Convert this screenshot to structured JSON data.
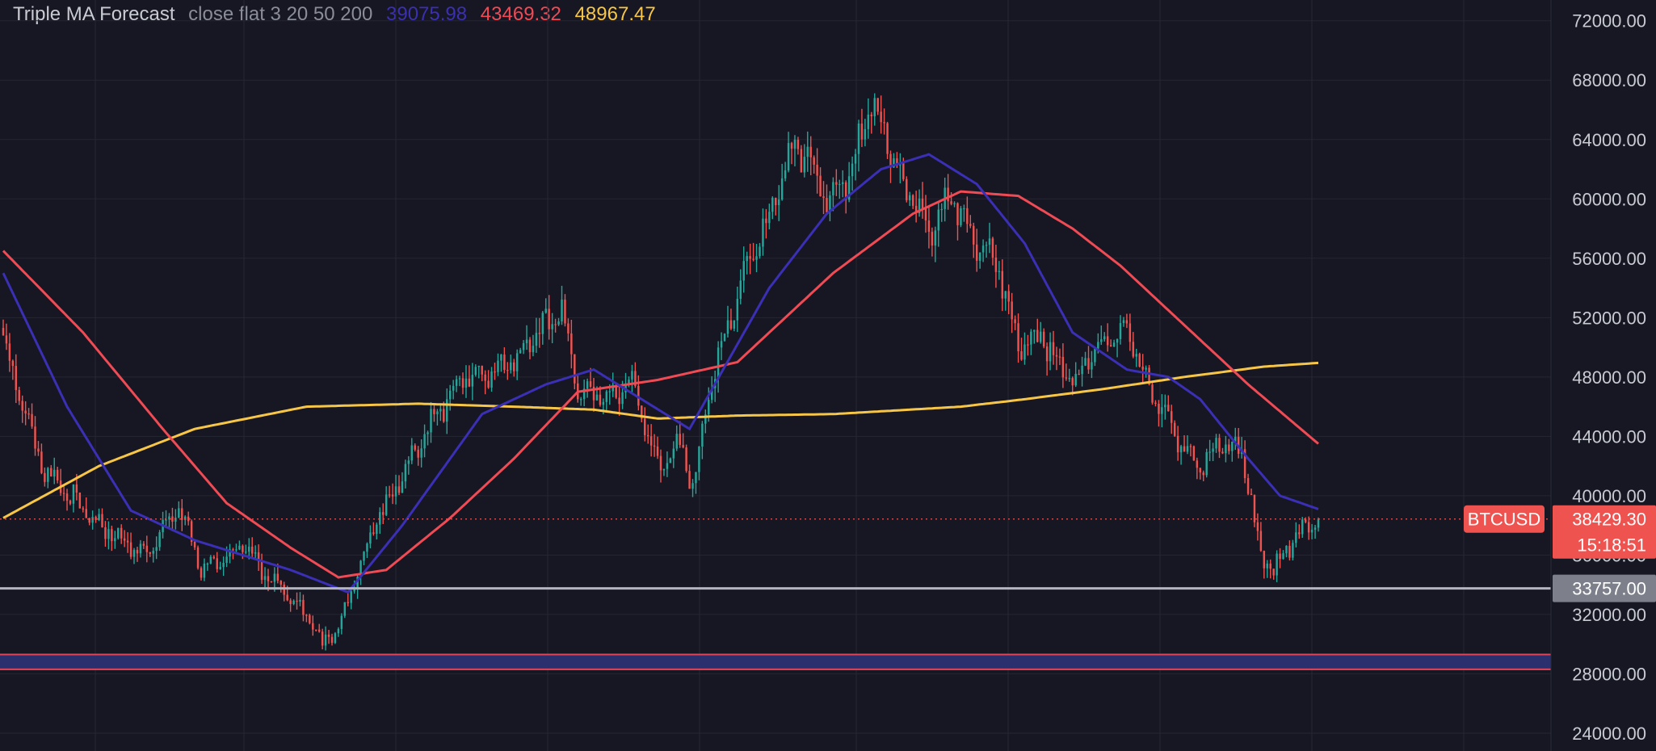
{
  "legend": {
    "name": "Triple MA Forecast",
    "params": "close flat 3 20 50 200",
    "values": [
      {
        "text": "39075.98",
        "color": "#3b2fb5"
      },
      {
        "text": "43469.32",
        "color": "#f04b55"
      },
      {
        "text": "48967.47",
        "color": "#f7c647"
      }
    ]
  },
  "chart_data": {
    "type": "candlestick",
    "symbol": "BTCUSD",
    "ylim": [
      22800,
      73400
    ],
    "y_ticks": [
      "24000.00",
      "28000.00",
      "32000.00",
      "36000.00",
      "40000.00",
      "44000.00",
      "48000.00",
      "52000.00",
      "56000.00",
      "60000.00",
      "64000.00",
      "68000.00",
      "72000.00"
    ],
    "y_tick_values": [
      24000,
      28000,
      32000,
      36000,
      40000,
      44000,
      48000,
      52000,
      56000,
      60000,
      64000,
      68000,
      72000
    ],
    "grid": true,
    "colors": {
      "up": "#26a69a",
      "down": "#ef5350",
      "ma20": "#3b2fb5",
      "ma50": "#f04b55",
      "ma200": "#f7c647",
      "zone_border": "#e0455b",
      "zone_fill": "#2a2f6e",
      "level_line": "#b2b5be"
    },
    "price_walk_anchors": [
      [
        0,
        50500
      ],
      [
        12,
        42000
      ],
      [
        30,
        38000
      ],
      [
        45,
        36000
      ],
      [
        55,
        39500
      ],
      [
        62,
        35000
      ],
      [
        75,
        36500
      ],
      [
        85,
        34200
      ],
      [
        95,
        32000
      ],
      [
        100,
        30000
      ],
      [
        106,
        31500
      ],
      [
        115,
        37500
      ],
      [
        125,
        41500
      ],
      [
        135,
        45500
      ],
      [
        145,
        48000
      ],
      [
        160,
        49000
      ],
      [
        170,
        51500
      ],
      [
        175,
        52200
      ],
      [
        180,
        47000
      ],
      [
        190,
        46500
      ],
      [
        197,
        47800
      ],
      [
        205,
        42000
      ],
      [
        212,
        43500
      ],
      [
        216,
        40500
      ],
      [
        222,
        48000
      ],
      [
        232,
        55000
      ],
      [
        240,
        59000
      ],
      [
        248,
        64000
      ],
      [
        258,
        60000
      ],
      [
        265,
        61500
      ],
      [
        272,
        66500
      ],
      [
        282,
        61000
      ],
      [
        290,
        58000
      ],
      [
        298,
        60000
      ],
      [
        305,
        57000
      ],
      [
        312,
        55500
      ],
      [
        318,
        50000
      ],
      [
        325,
        51000
      ],
      [
        335,
        47500
      ],
      [
        345,
        50500
      ],
      [
        352,
        51200
      ],
      [
        360,
        47000
      ],
      [
        368,
        44000
      ],
      [
        375,
        42000
      ],
      [
        382,
        43500
      ],
      [
        388,
        43000
      ],
      [
        394,
        36000
      ],
      [
        398,
        35000
      ],
      [
        405,
        37500
      ],
      [
        412,
        38500
      ]
    ],
    "ma_curves": {
      "ma20": [
        [
          0,
          55000
        ],
        [
          20,
          46000
        ],
        [
          40,
          39000
        ],
        [
          60,
          37000
        ],
        [
          90,
          35000
        ],
        [
          108,
          33500
        ],
        [
          125,
          38000
        ],
        [
          150,
          45500
        ],
        [
          170,
          47500
        ],
        [
          185,
          48500
        ],
        [
          200,
          46500
        ],
        [
          215,
          44500
        ],
        [
          240,
          54000
        ],
        [
          258,
          59000
        ],
        [
          275,
          62000
        ],
        [
          290,
          63000
        ],
        [
          305,
          61000
        ],
        [
          320,
          57000
        ],
        [
          335,
          51000
        ],
        [
          352,
          48500
        ],
        [
          365,
          48000
        ],
        [
          375,
          46500
        ],
        [
          390,
          42500
        ],
        [
          400,
          40000
        ],
        [
          412,
          39100
        ]
      ],
      "ma50": [
        [
          0,
          56500
        ],
        [
          25,
          51000
        ],
        [
          50,
          44500
        ],
        [
          70,
          39500
        ],
        [
          90,
          36500
        ],
        [
          105,
          34500
        ],
        [
          120,
          35000
        ],
        [
          140,
          38500
        ],
        [
          160,
          42500
        ],
        [
          180,
          47000
        ],
        [
          205,
          47800
        ],
        [
          230,
          49000
        ],
        [
          260,
          55000
        ],
        [
          285,
          59000
        ],
        [
          300,
          60500
        ],
        [
          318,
          60200
        ],
        [
          335,
          58000
        ],
        [
          350,
          55500
        ],
        [
          370,
          51500
        ],
        [
          390,
          47500
        ],
        [
          412,
          43500
        ]
      ],
      "ma200": [
        [
          0,
          38500
        ],
        [
          30,
          42000
        ],
        [
          60,
          44500
        ],
        [
          95,
          46000
        ],
        [
          130,
          46200
        ],
        [
          160,
          46000
        ],
        [
          185,
          45800
        ],
        [
          205,
          45200
        ],
        [
          230,
          45400
        ],
        [
          260,
          45500
        ],
        [
          300,
          46000
        ],
        [
          320,
          46500
        ],
        [
          345,
          47200
        ],
        [
          370,
          48000
        ],
        [
          395,
          48700
        ],
        [
          412,
          48950
        ]
      ]
    },
    "current_price": 38429.3,
    "current_price_text": "38429.30",
    "countdown_text": "15:18:51",
    "level_price": 33757.0,
    "level_text": "33757.00",
    "zone_top": 29300,
    "zone_bottom": 28300,
    "hidden_tick": "36000.00"
  },
  "tags": {
    "symbol": "BTCUSD",
    "price": "38429.30",
    "countdown": "15:18:51",
    "level": "33757.00"
  }
}
